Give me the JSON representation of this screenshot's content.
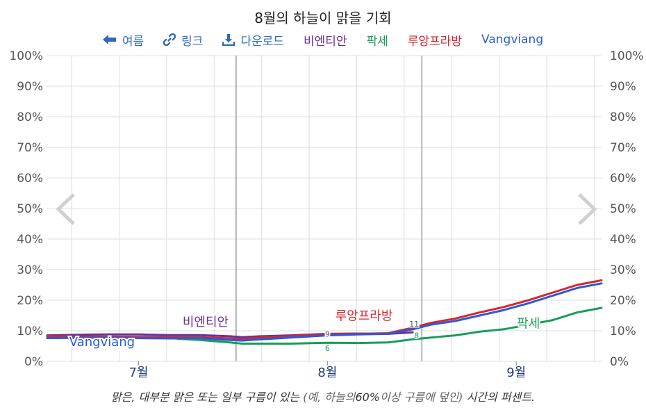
{
  "title": "8월의 하늘이 맑을 기회",
  "toolbar": {
    "back_label": "여름",
    "link_label": "링크",
    "download_label": "다운로드"
  },
  "colors": {
    "vientiane": "#6a2f9c",
    "pakse": "#1a9c5a",
    "luang_prabang": "#d7262d",
    "vangviang": "#2a5bd7",
    "link": "#2f6bb7",
    "grid": "#dddddd",
    "month_boundary": "#999999"
  },
  "footnote": {
    "part1": "맑은, 대부분 맑은 또는 일부 구름이 있는",
    "part2": "(예, 하늘의",
    "part3": "60%",
    "part4": "이상 구름에 덮인)",
    "part5": "시간의 퍼센트."
  },
  "chart_data": {
    "type": "line",
    "y_unit": "%",
    "ylim": [
      0,
      100
    ],
    "yticks": [
      "0%",
      "10%",
      "20%",
      "30%",
      "40%",
      "50%",
      "60%",
      "70%",
      "80%",
      "90%",
      "100%"
    ],
    "x_labels": [
      {
        "label": "7월",
        "day": 16
      },
      {
        "label": "8월",
        "day": 47
      },
      {
        "label": "9월",
        "day": 78
      }
    ],
    "x_start_day": 1,
    "x_end_day": 92,
    "month_boundaries_day": [
      32,
      62.5
    ],
    "highlight_day": 47,
    "series": [
      {
        "key": "vientiane",
        "name": "비엔티안",
        "label_day": 27,
        "label_value": 11.5,
        "highlight_value": "9",
        "points": [
          [
            1,
            8.5
          ],
          [
            6,
            8.7
          ],
          [
            11,
            8.8
          ],
          [
            16,
            8.8
          ],
          [
            21,
            8.6
          ],
          [
            26,
            8.6
          ],
          [
            31,
            8.2
          ],
          [
            33,
            7.9
          ],
          [
            36,
            8.2
          ],
          [
            41,
            8.5
          ],
          [
            47,
            9.0
          ],
          [
            52,
            9.1
          ],
          [
            57,
            9.0
          ],
          [
            61,
            9.5
          ]
        ]
      },
      {
        "key": "pakse",
        "name": "팍세",
        "label_day": 80,
        "label_value": 11.0,
        "highlight_value": "6",
        "end_value": "8",
        "points": [
          [
            1,
            7.9
          ],
          [
            6,
            7.9
          ],
          [
            11,
            7.9
          ],
          [
            16,
            7.7
          ],
          [
            21,
            7.6
          ],
          [
            26,
            7.0
          ],
          [
            31,
            6.2
          ],
          [
            33,
            5.8
          ],
          [
            36,
            5.8
          ],
          [
            41,
            5.8
          ],
          [
            47,
            6.1
          ],
          [
            52,
            6.0
          ],
          [
            57,
            6.2
          ],
          [
            61,
            7.2
          ],
          [
            64,
            7.8
          ],
          [
            68,
            8.5
          ],
          [
            72,
            9.7
          ],
          [
            76,
            10.5
          ],
          [
            80,
            12.0
          ],
          [
            84,
            13.5
          ],
          [
            88,
            16.0
          ],
          [
            92,
            17.5
          ]
        ]
      },
      {
        "key": "luang_prabang",
        "name": "루앙프라방",
        "label_day": 53,
        "label_value": 13.5,
        "end_value": "11",
        "points": [
          [
            1,
            8.3
          ],
          [
            6,
            8.1
          ],
          [
            11,
            8.1
          ],
          [
            16,
            8.0
          ],
          [
            21,
            7.9
          ],
          [
            26,
            7.9
          ],
          [
            31,
            7.5
          ],
          [
            33,
            7.3
          ],
          [
            36,
            7.8
          ],
          [
            41,
            8.2
          ],
          [
            47,
            8.9
          ],
          [
            52,
            9.0
          ],
          [
            57,
            9.2
          ],
          [
            61,
            11.0
          ],
          [
            64,
            12.6
          ],
          [
            68,
            14.0
          ],
          [
            72,
            16.0
          ],
          [
            76,
            17.8
          ],
          [
            80,
            20.0
          ],
          [
            84,
            22.5
          ],
          [
            88,
            25.0
          ],
          [
            92,
            26.5
          ]
        ]
      },
      {
        "key": "vangviang",
        "name": "Vangviang",
        "label_day": 10,
        "label_value": 5.0,
        "points": [
          [
            1,
            7.6
          ],
          [
            6,
            7.7
          ],
          [
            11,
            7.7
          ],
          [
            16,
            7.6
          ],
          [
            21,
            7.5
          ],
          [
            26,
            7.6
          ],
          [
            31,
            7.0
          ],
          [
            33,
            6.8
          ],
          [
            36,
            7.2
          ],
          [
            41,
            7.8
          ],
          [
            47,
            8.5
          ],
          [
            52,
            8.8
          ],
          [
            57,
            9.0
          ],
          [
            61,
            10.5
          ],
          [
            64,
            12.0
          ],
          [
            68,
            13.2
          ],
          [
            72,
            15.0
          ],
          [
            76,
            16.8
          ],
          [
            80,
            19.0
          ],
          [
            84,
            21.5
          ],
          [
            88,
            24.0
          ],
          [
            92,
            25.5
          ]
        ]
      }
    ]
  }
}
